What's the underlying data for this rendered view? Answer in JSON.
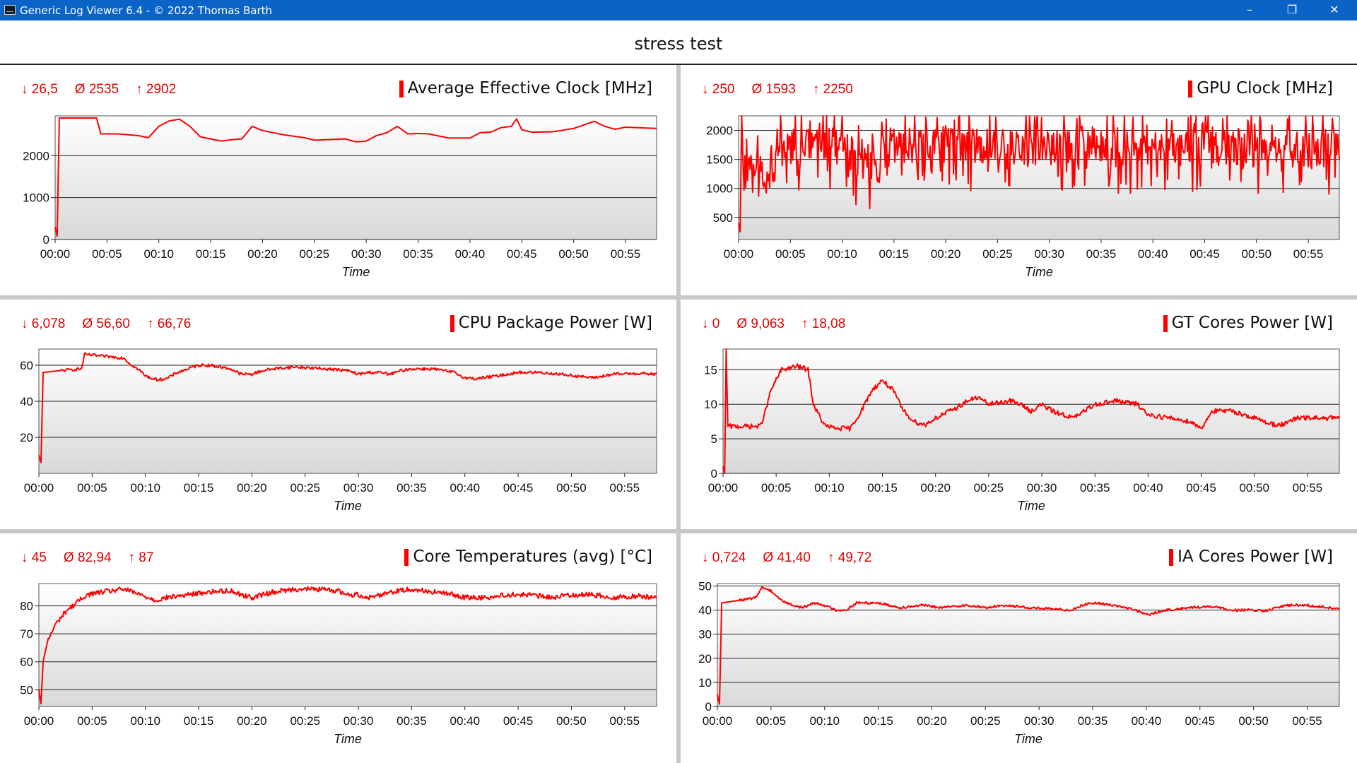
{
  "window": {
    "title": "Generic Log Viewer 6.4 - © 2022 Thomas Barth",
    "minimize": "–",
    "restore": "❐",
    "close": "✕"
  },
  "page_title": "stress test",
  "colors": {
    "line": "#ff0000",
    "stats": "#e00000",
    "titlebar": "#0a64c8"
  },
  "chart_data": [
    {
      "type": "line",
      "title": "Average Effective Clock [MHz]",
      "xlabel": "Time",
      "stats": {
        "min": "↓ 26,5",
        "avg": "Ø 2535",
        "max": "↑ 2902"
      },
      "ylim": [
        0,
        2950
      ],
      "yticks": [
        0,
        1000,
        2000
      ],
      "xlim": [
        0,
        58
      ],
      "xticks": [
        "00:00",
        "00:05",
        "00:10",
        "00:15",
        "00:20",
        "00:25",
        "00:30",
        "00:35",
        "00:40",
        "00:45",
        "00:50",
        "00:55"
      ],
      "noise": 0,
      "series": [
        {
          "points": [
            [
              0,
              300
            ],
            [
              0.2,
              80
            ],
            [
              0.4,
              2900
            ],
            [
              4,
              2900
            ],
            [
              4.4,
              2520
            ],
            [
              6,
              2520
            ],
            [
              8,
              2480
            ],
            [
              9,
              2430
            ],
            [
              10,
              2700
            ],
            [
              11,
              2830
            ],
            [
              12,
              2870
            ],
            [
              13,
              2700
            ],
            [
              14,
              2450
            ],
            [
              16,
              2350
            ],
            [
              17,
              2380
            ],
            [
              18,
              2400
            ],
            [
              19,
              2700
            ],
            [
              20,
              2600
            ],
            [
              22,
              2500
            ],
            [
              24,
              2430
            ],
            [
              25,
              2370
            ],
            [
              27,
              2390
            ],
            [
              28,
              2400
            ],
            [
              29,
              2330
            ],
            [
              30,
              2350
            ],
            [
              31,
              2480
            ],
            [
              32,
              2550
            ],
            [
              33,
              2700
            ],
            [
              34,
              2520
            ],
            [
              35,
              2530
            ],
            [
              36,
              2520
            ],
            [
              38,
              2420
            ],
            [
              40,
              2420
            ],
            [
              41,
              2550
            ],
            [
              42,
              2560
            ],
            [
              43,
              2670
            ],
            [
              44,
              2700
            ],
            [
              44.5,
              2880
            ],
            [
              45,
              2620
            ],
            [
              46,
              2560
            ],
            [
              48,
              2570
            ],
            [
              50,
              2650
            ],
            [
              52,
              2820
            ],
            [
              53,
              2700
            ],
            [
              54,
              2630
            ],
            [
              55,
              2680
            ],
            [
              58,
              2650
            ]
          ]
        }
      ]
    },
    {
      "type": "line",
      "title": "GPU Clock [MHz]",
      "xlabel": "Time",
      "stats": {
        "min": "↓ 250",
        "avg": "Ø 1593",
        "max": "↑ 2250"
      },
      "ylim": [
        120,
        2250
      ],
      "yticks": [
        500,
        1000,
        1500,
        2000
      ],
      "xlim": [
        0,
        58
      ],
      "xticks": [
        "00:00",
        "00:05",
        "00:10",
        "00:15",
        "00:20",
        "00:25",
        "00:30",
        "00:35",
        "00:40",
        "00:45",
        "00:50",
        "00:55"
      ],
      "noise": 300,
      "series": [
        {
          "points": [
            [
              0,
              400
            ],
            [
              0.15,
              250
            ],
            [
              0.3,
              2250
            ],
            [
              0.45,
              1300
            ],
            [
              3.5,
              1300
            ],
            [
              3.8,
              1700
            ],
            [
              9,
              1750
            ],
            [
              11,
              1600
            ],
            [
              11.5,
              1400
            ],
            [
              14,
              1400
            ],
            [
              15,
              1750
            ],
            [
              58,
              1650
            ]
          ]
        }
      ]
    },
    {
      "type": "line",
      "title": "CPU Package Power [W]",
      "xlabel": "Time",
      "stats": {
        "min": "↓ 6,078",
        "avg": "Ø 56,60",
        "max": "↑ 66,76"
      },
      "ylim": [
        0,
        69
      ],
      "yticks": [
        20,
        40,
        60
      ],
      "xlim": [
        0,
        58
      ],
      "xticks": [
        "00:00",
        "00:05",
        "00:10",
        "00:15",
        "00:20",
        "00:25",
        "00:30",
        "00:35",
        "00:40",
        "00:45",
        "00:50",
        "00:55"
      ],
      "noise": 0.8,
      "series": [
        {
          "points": [
            [
              0,
              10
            ],
            [
              0.2,
              6
            ],
            [
              0.4,
              56
            ],
            [
              2,
              57
            ],
            [
              4,
              58
            ],
            [
              4.3,
              66
            ],
            [
              6,
              65
            ],
            [
              8,
              64
            ],
            [
              8.5,
              61
            ],
            [
              9.5,
              57
            ],
            [
              10,
              54
            ],
            [
              11,
              52
            ],
            [
              12,
              52.5
            ],
            [
              13,
              56
            ],
            [
              15,
              60
            ],
            [
              16,
              60
            ],
            [
              18,
              58
            ],
            [
              19,
              55
            ],
            [
              20,
              55
            ],
            [
              21,
              57
            ],
            [
              22,
              58
            ],
            [
              24,
              59
            ],
            [
              27,
              58
            ],
            [
              29,
              57
            ],
            [
              30,
              55
            ],
            [
              31,
              56
            ],
            [
              32,
              56
            ],
            [
              33,
              55
            ],
            [
              34,
              57
            ],
            [
              35,
              58
            ],
            [
              37,
              58
            ],
            [
              39,
              56
            ],
            [
              40,
              53
            ],
            [
              41,
              52.5
            ],
            [
              43,
              54
            ],
            [
              45,
              56
            ],
            [
              47,
              56
            ],
            [
              49,
              55
            ],
            [
              52,
              53
            ],
            [
              54,
              55
            ],
            [
              56,
              55.5
            ],
            [
              58,
              55
            ]
          ]
        }
      ]
    },
    {
      "type": "line",
      "title": "GT Cores Power [W]",
      "xlabel": "Time",
      "stats": {
        "min": "↓ 0",
        "avg": "Ø 9,063",
        "max": "↑ 18,08"
      },
      "ylim": [
        0,
        18
      ],
      "yticks": [
        0,
        5,
        10,
        15
      ],
      "xlim": [
        0,
        58
      ],
      "xticks": [
        "00:00",
        "00:05",
        "00:10",
        "00:15",
        "00:20",
        "00:25",
        "00:30",
        "00:35",
        "00:40",
        "00:45",
        "00:50",
        "00:55"
      ],
      "noise": 0.35,
      "series": [
        {
          "points": [
            [
              0,
              1
            ],
            [
              0.15,
              0
            ],
            [
              0.3,
              18
            ],
            [
              0.45,
              6.8
            ],
            [
              3.5,
              6.8
            ],
            [
              4,
              9
            ],
            [
              4.5,
              12
            ],
            [
              5.5,
              15
            ],
            [
              7,
              15.5
            ],
            [
              8,
              15
            ],
            [
              8.5,
              10
            ],
            [
              9.5,
              7
            ],
            [
              10.5,
              6.5
            ],
            [
              12,
              6.5
            ],
            [
              13,
              9
            ],
            [
              14,
              12
            ],
            [
              15,
              13.5
            ],
            [
              16,
              12
            ],
            [
              17,
              9
            ],
            [
              18,
              7.5
            ],
            [
              19,
              7
            ],
            [
              20,
              8
            ],
            [
              22,
              9.5
            ],
            [
              23,
              10.5
            ],
            [
              24,
              11
            ],
            [
              25,
              10
            ],
            [
              27,
              10.5
            ],
            [
              28,
              10
            ],
            [
              29,
              9
            ],
            [
              30,
              10
            ],
            [
              31,
              9
            ],
            [
              33,
              8
            ],
            [
              34,
              9
            ],
            [
              35,
              10
            ],
            [
              37,
              10.5
            ],
            [
              39,
              10
            ],
            [
              40,
              8.5
            ],
            [
              42,
              8
            ],
            [
              44,
              7.5
            ],
            [
              45,
              6.5
            ],
            [
              46,
              9
            ],
            [
              48,
              9
            ],
            [
              50,
              8
            ],
            [
              52,
              7
            ],
            [
              53,
              7.2
            ],
            [
              54,
              8
            ],
            [
              56,
              8
            ],
            [
              58,
              8
            ]
          ]
        }
      ]
    },
    {
      "type": "line",
      "title": "Core Temperatures (avg) [°C]",
      "xlabel": "Time",
      "stats": {
        "min": "↓ 45",
        "avg": "Ø 82,94",
        "max": "↑ 87"
      },
      "ylim": [
        44,
        88
      ],
      "yticks": [
        50,
        60,
        70,
        80
      ],
      "xlim": [
        0,
        58
      ],
      "xticks": [
        "00:00",
        "00:05",
        "00:10",
        "00:15",
        "00:20",
        "00:25",
        "00:30",
        "00:35",
        "00:40",
        "00:45",
        "00:50",
        "00:55"
      ],
      "noise": 0.9,
      "series": [
        {
          "points": [
            [
              0,
              50
            ],
            [
              0.2,
              45
            ],
            [
              0.4,
              60
            ],
            [
              0.8,
              67
            ],
            [
              1.5,
              73
            ],
            [
              2.5,
              78
            ],
            [
              3.5,
              81
            ],
            [
              4.5,
              84
            ],
            [
              6,
              85
            ],
            [
              8,
              86
            ],
            [
              9.5,
              84
            ],
            [
              11,
              82
            ],
            [
              12,
              83
            ],
            [
              14,
              84
            ],
            [
              16,
              85
            ],
            [
              18,
              85.5
            ],
            [
              19,
              84
            ],
            [
              20,
              83
            ],
            [
              22,
              85
            ],
            [
              24,
              86
            ],
            [
              26,
              86
            ],
            [
              28,
              85.5
            ],
            [
              29,
              84
            ],
            [
              30,
              84
            ],
            [
              31,
              83
            ],
            [
              33,
              85
            ],
            [
              35,
              86
            ],
            [
              37,
              85
            ],
            [
              39,
              84
            ],
            [
              40,
              83
            ],
            [
              42,
              83
            ],
            [
              44,
              84
            ],
            [
              46,
              84
            ],
            [
              48,
              83
            ],
            [
              50,
              84
            ],
            [
              52,
              84
            ],
            [
              54,
              83
            ],
            [
              56,
              83.5
            ],
            [
              58,
              83
            ]
          ]
        }
      ]
    },
    {
      "type": "line",
      "title": "IA Cores Power [W]",
      "xlabel": "Time",
      "stats": {
        "min": "↓ 0,724",
        "avg": "Ø 41,40",
        "max": "↑ 49,72"
      },
      "ylim": [
        0,
        51
      ],
      "yticks": [
        0,
        10,
        20,
        30,
        40,
        50
      ],
      "xlim": [
        0,
        58
      ],
      "xticks": [
        "00:00",
        "00:05",
        "00:10",
        "00:15",
        "00:20",
        "00:25",
        "00:30",
        "00:35",
        "00:40",
        "00:45",
        "00:50",
        "00:55"
      ],
      "noise": 0.5,
      "series": [
        {
          "points": [
            [
              0,
              5
            ],
            [
              0.2,
              1
            ],
            [
              0.4,
              43
            ],
            [
              2,
              44
            ],
            [
              3.5,
              45
            ],
            [
              4.2,
              49.5
            ],
            [
              5,
              48
            ],
            [
              6,
              44
            ],
            [
              7,
              42
            ],
            [
              8,
              41
            ],
            [
              9,
              43
            ],
            [
              10,
              42
            ],
            [
              11,
              40
            ],
            [
              12,
              40
            ],
            [
              13,
              43
            ],
            [
              15,
              43
            ],
            [
              17,
              41
            ],
            [
              19,
              42
            ],
            [
              21,
              41
            ],
            [
              23,
              42
            ],
            [
              25,
              41
            ],
            [
              27,
              42
            ],
            [
              29,
              41
            ],
            [
              31,
              40.5
            ],
            [
              33,
              40
            ],
            [
              34,
              42
            ],
            [
              35,
              43
            ],
            [
              37,
              42
            ],
            [
              39,
              40
            ],
            [
              40,
              38
            ],
            [
              41,
              39
            ],
            [
              42,
              40
            ],
            [
              44,
              41
            ],
            [
              46,
              41.5
            ],
            [
              48,
              40
            ],
            [
              50,
              40
            ],
            [
              51,
              39.5
            ],
            [
              53,
              42
            ],
            [
              55,
              42
            ],
            [
              57,
              41
            ],
            [
              58,
              40.5
            ]
          ]
        }
      ]
    }
  ]
}
